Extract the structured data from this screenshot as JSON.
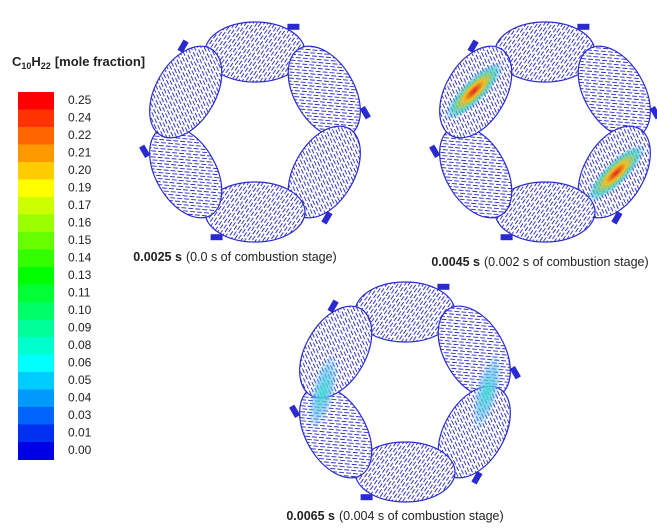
{
  "legend": {
    "title_parts": [
      "C",
      "10",
      "H",
      "22",
      "[mole fraction]"
    ],
    "labels": [
      "0.25",
      "0.24",
      "0.22",
      "0.21",
      "0.20",
      "0.19",
      "0.17",
      "0.16",
      "0.15",
      "0.14",
      "0.13",
      "0.11",
      "0.10",
      "0.09",
      "0.08",
      "0.06",
      "0.05",
      "0.04",
      "0.03",
      "0.01",
      "0.00"
    ]
  },
  "panels": [
    {
      "time": "0.0025 s",
      "note": "(0.0 s of combustion stage)"
    },
    {
      "time": "0.0045 s",
      "note": "(0.002 s of combustion stage)"
    },
    {
      "time": "0.0065 s",
      "note": "(0.004 s of combustion stage)"
    }
  ]
}
